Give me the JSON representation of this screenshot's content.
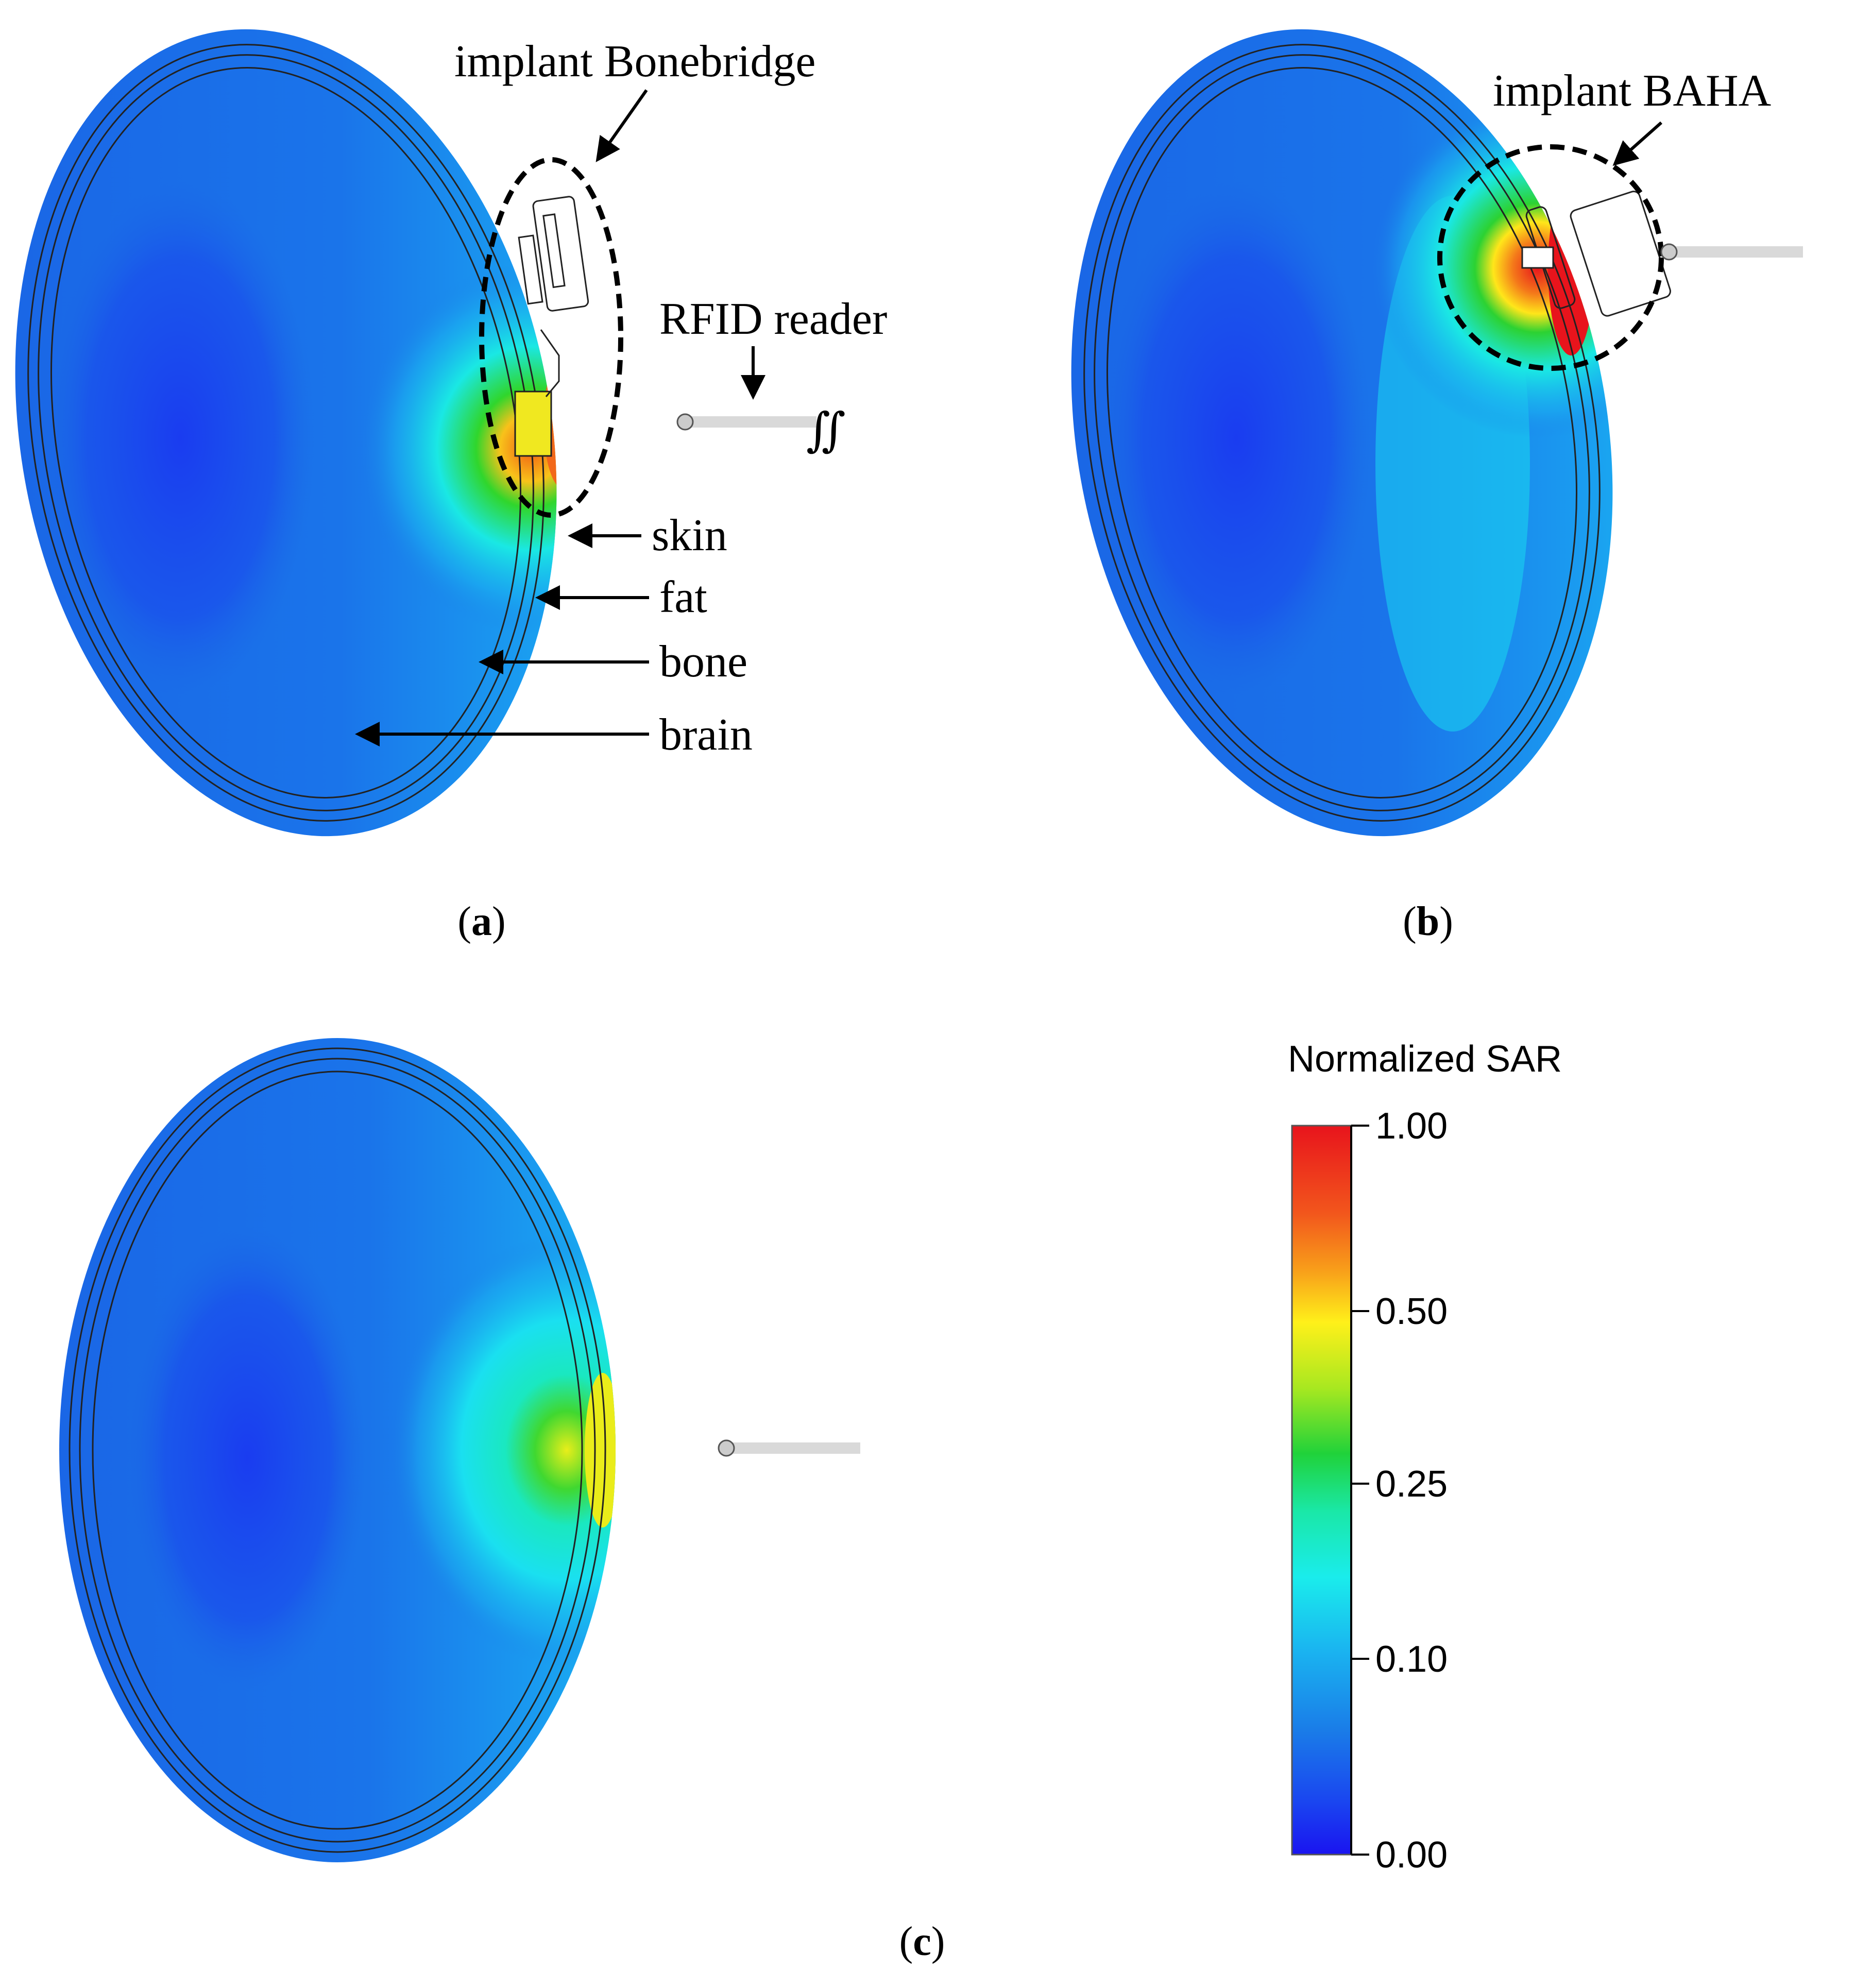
{
  "panels": [
    {
      "id": "a",
      "caption_open": "(",
      "caption_letter": "a",
      "caption_close": ")",
      "implant_label": "implant Bonebridge",
      "reader_label": "RFID reader",
      "reader_symbol": "∬",
      "layer_labels": [
        "skin",
        "fat",
        "bone",
        "brain"
      ],
      "peak_sar": 0.75
    },
    {
      "id": "b",
      "caption_open": "(",
      "caption_letter": "b",
      "caption_close": ")",
      "implant_label": "implant BAHA",
      "peak_sar": 1.0
    },
    {
      "id": "c",
      "caption_open": "(",
      "caption_letter": "c",
      "caption_close": ")",
      "peak_sar": 0.45
    }
  ],
  "colorbar": {
    "title": "Normalized SAR",
    "ticks": [
      "1.00",
      "0.50",
      "0.25",
      "0.10",
      "0.00"
    ],
    "tick_values": [
      1.0,
      0.5,
      0.25,
      0.1,
      0.0
    ],
    "colors_top_to_bottom": [
      "#e8141c",
      "#f2661c",
      "#f8a51a",
      "#ffef1a",
      "#b8ea20",
      "#20d23a",
      "#1ae8a8",
      "#1ae8ec",
      "#1ab4f0",
      "#1a82e8",
      "#1a48f0",
      "#1a14f0"
    ]
  }
}
